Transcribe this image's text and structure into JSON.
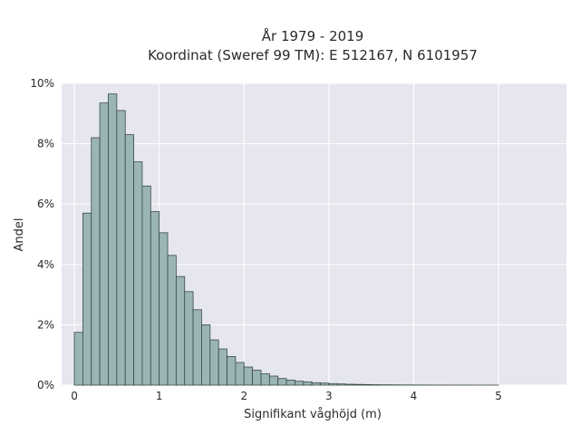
{
  "chart_data": {
    "type": "bar",
    "title_lines": [
      "År 1979 - 2019",
      "Koordinat (Sweref 99 TM): E 512167, N 6101957"
    ],
    "xlabel": "Signifikant våghöjd (m)",
    "ylabel": "Andel",
    "xlim": [
      -0.15,
      5.8
    ],
    "ylim": [
      0,
      10
    ],
    "x_ticks": [
      0,
      1,
      2,
      3,
      4,
      5
    ],
    "x_tick_labels": [
      "0",
      "1",
      "2",
      "3",
      "4",
      "5"
    ],
    "y_ticks": [
      0,
      2,
      4,
      6,
      8,
      10
    ],
    "y_tick_labels": [
      "0%",
      "2%",
      "4%",
      "6%",
      "8%",
      "10%"
    ],
    "bin_width": 0.1,
    "bin_starts": [
      0.0,
      0.1,
      0.2,
      0.3,
      0.4,
      0.5,
      0.6,
      0.7,
      0.8,
      0.9,
      1.0,
      1.1,
      1.2,
      1.3,
      1.4,
      1.5,
      1.6,
      1.7,
      1.8,
      1.9,
      2.0,
      2.1,
      2.2,
      2.3,
      2.4,
      2.5,
      2.6,
      2.7,
      2.8,
      2.9,
      3.0,
      3.1,
      3.2,
      3.3,
      3.4,
      3.5,
      3.6,
      3.7,
      3.8,
      3.9,
      4.0,
      4.1,
      4.2,
      4.3,
      4.4,
      4.5,
      4.6,
      4.7,
      4.8,
      4.9
    ],
    "values": [
      1.75,
      5.7,
      8.2,
      9.35,
      9.65,
      9.1,
      8.3,
      7.4,
      6.6,
      5.75,
      5.05,
      4.3,
      3.6,
      3.1,
      2.5,
      2.0,
      1.5,
      1.2,
      0.95,
      0.75,
      0.6,
      0.5,
      0.38,
      0.3,
      0.22,
      0.17,
      0.13,
      0.11,
      0.08,
      0.07,
      0.05,
      0.04,
      0.03,
      0.025,
      0.02,
      0.015,
      0.012,
      0.01,
      0.008,
      0.006,
      0.005,
      0.004,
      0.003,
      0.003,
      0.002,
      0.002,
      0.002,
      0.001,
      0.001,
      0.001
    ],
    "colors": {
      "bar_fill": "#9ab5b3",
      "bar_stroke": "#3a4a48",
      "plot_bg": "#e6e6ef",
      "grid": "#ffffff"
    },
    "grid": true
  }
}
